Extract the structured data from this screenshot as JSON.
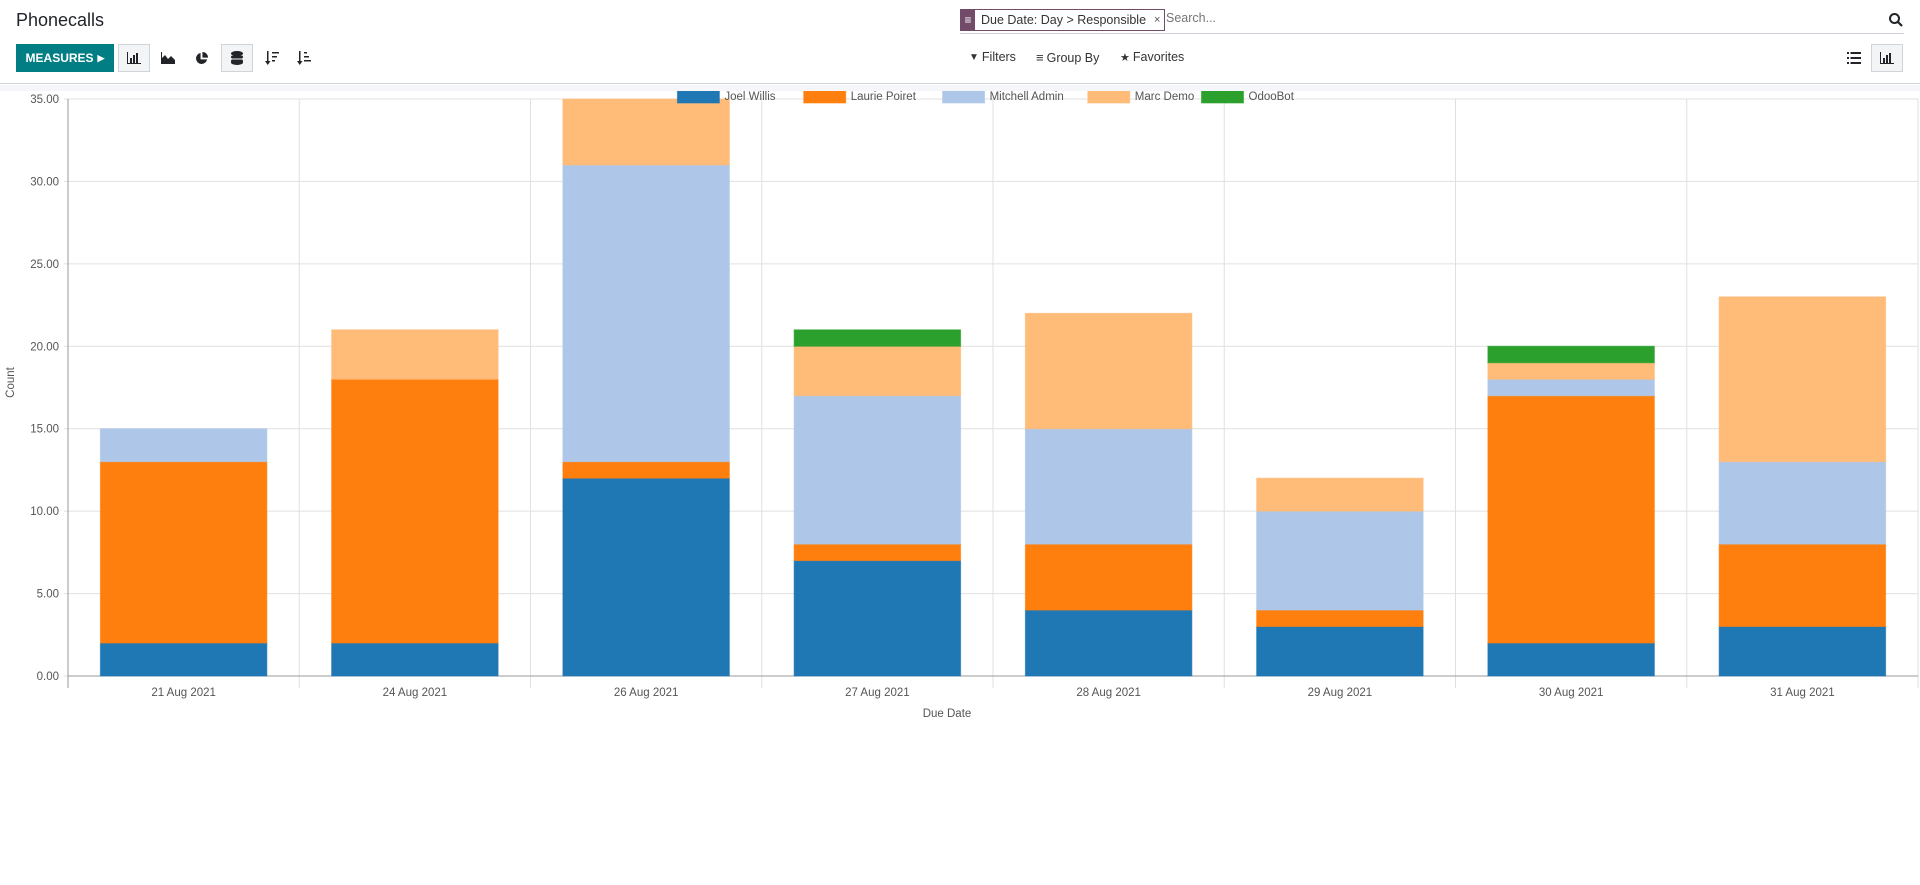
{
  "header": {
    "title": "Phonecalls",
    "facet_label": "Due Date: Day > Responsible",
    "facet_close": "×",
    "search_placeholder": "Search...",
    "measures_label": "MEASURES",
    "filters_label": "Filters",
    "groupby_label": "Group By",
    "favorites_label": "Favorites"
  },
  "toolbar": {
    "chart_types": [
      "bar-chart-icon",
      "line-chart-icon",
      "pie-chart-icon"
    ],
    "active_chart": "bar",
    "stacked": true,
    "sort_buttons": [
      "sort-descending-icon",
      "sort-ascending-icon"
    ],
    "views": [
      "list-view-icon",
      "graph-view-icon"
    ],
    "active_view": "graph"
  },
  "colors": {
    "accent": "#017e84",
    "facet": "#714b67"
  },
  "chart_data": {
    "type": "bar",
    "stacked": true,
    "title": "",
    "xlabel": "Due Date",
    "ylabel": "Count",
    "ylim": [
      0,
      35
    ],
    "yticks": [
      "0.00",
      "5.00",
      "10.00",
      "15.00",
      "20.00",
      "25.00",
      "30.00",
      "35.00"
    ],
    "grid": true,
    "legend_position": "top-center",
    "categories": [
      "21 Aug 2021",
      "24 Aug 2021",
      "26 Aug 2021",
      "27 Aug 2021",
      "28 Aug 2021",
      "29 Aug 2021",
      "30 Aug 2021",
      "31 Aug 2021"
    ],
    "series": [
      {
        "name": "Joel Willis",
        "color": "#1f77b4",
        "values": [
          2,
          2,
          12,
          7,
          4,
          3,
          2,
          3
        ]
      },
      {
        "name": "Laurie Poiret",
        "color": "#ff7f0e",
        "values": [
          11,
          16,
          1,
          1,
          4,
          1,
          15,
          5
        ]
      },
      {
        "name": "Mitchell Admin",
        "color": "#aec7e8",
        "values": [
          2,
          0,
          18,
          9,
          7,
          6,
          1,
          5
        ]
      },
      {
        "name": "Marc Demo",
        "color": "#ffbb78",
        "values": [
          0,
          3,
          4,
          3,
          7,
          2,
          1,
          10
        ]
      },
      {
        "name": "OdooBot",
        "color": "#2ca02c",
        "values": [
          0,
          0,
          0,
          1,
          0,
          0,
          1,
          0
        ]
      }
    ]
  }
}
